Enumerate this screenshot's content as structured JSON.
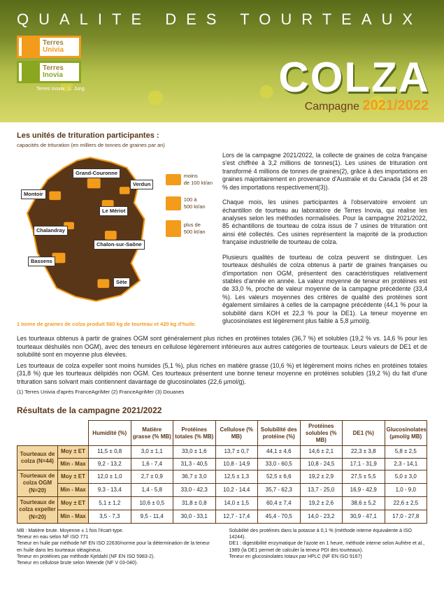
{
  "header": {
    "title": "QUALITE DES TOURTEAUX",
    "logo1_top": "Terres",
    "logo1_bot": "Univia",
    "logo2_top": "Terres",
    "logo2_bot": "Inovia",
    "photo_credit": "Terres Inovia : L. Jung",
    "product": "COLZA",
    "campagne_label": "Campagne",
    "campagne_year": "2021/2022",
    "brown": "#5a3618",
    "orange": "#f39b1a"
  },
  "section1": {
    "subtitle": "Les unités de trituration participantes :",
    "caption": "capacités de trituration (en milliers de tonnes de graines par an)",
    "map_foot": "1 tonne de graines de colza produit 560 kg de tourteau et 420 kg d'huile.",
    "cities": {
      "montoir": "Montoir",
      "grand_couronne": "Grand-Couronne",
      "verdun": "Verdun",
      "le_meriot": "Le Mériot",
      "chalandray": "Chalandray",
      "chalon": "Chalon-sur-Saône",
      "bassens": "Bassens",
      "sete": "Sète"
    },
    "legend": {
      "l1a": "moins",
      "l1b": "de 100 kt/an",
      "l2a": "100 à",
      "l2b": "500 kt/an",
      "l3a": "plus de",
      "l3b": "500 kt/an"
    }
  },
  "para": {
    "p1": "Lors de la campagne 2021/2022, la collecte de graines de colza française s'est chiffrée à 3,2 millions de tonnes(1). Les usines de trituration ont transformé 4 millions de tonnes de graines(2), grâce à des importations en graines majoritairement en provenance d'Australie et du Canada (34 et 28 % des importations respectivement(3)).",
    "p2": "Chaque mois, les usines participantes à l'observatoire envoient un échantillon de tourteau au laboratoire de Terres Inovia, qui réalise les analyses selon les méthodes normalisées. Pour la campagne 2021/2022, 85 échantillons de tourteau de colza issus de 7 usines de trituration ont ainsi été collectés. Ces usines représentent la majorité de la production française industrielle de tourteau de colza.",
    "p3": "Plusieurs qualités de tourteau de colza peuvent se distinguer. Les tourteaux déshuilés de colza obtenus à partir de graines françaises ou d'importation non OGM, présentent des caractéristiques relativement stables d'année en année. La valeur moyenne de teneur en protéines est de 33,0 %, proche de valeur moyenne de la campagne précédente (33,4 %). Les valeurs moyennes des critères de qualité des protéines sont également similaires à celles de la campagne précédente (44,1 % pour la solubilité dans KOH et 22,3 % pour la DE1). La teneur moyenne en glucosinolates est légèrement plus faible à 5,8 µmol/g.",
    "p4": "Les tourteaux obtenus à partir de graines OGM sont généralement plus riches en protéines totales (36,7 %) et solubles (19,2 % vs. 14,6 % pour les tourteaux déshuilés non OGM), avec des teneurs en cellulose légèrement inférieures aux autres catégories de tourteaux. Leurs valeurs de DE1 et de solubilité sont en moyenne plus élevées.",
    "p5": "Les tourteaux de colza expeller sont moins humides (5,1 %), plus riches en matière grasse (10,6 %) et légèrement moins riches en protéines totales (31,8 %) que les tourteaux délipidés non OGM. Ces tourteaux présentent une bonne teneur moyenne en protéines solubles (19,2 %) du fait d'une trituration sans solvant mais contiennent davantage de glucosinolates (22,6 µmol/g).",
    "refs": "(1) Terres Univia d'après FranceAgriMer (2) FranceAgriMer (3) Douanes"
  },
  "results": {
    "title": "Résultats de la campagne 2021/2022",
    "stat_moy": "Moy ± ET",
    "stat_minmax": "Min - Max",
    "cols": [
      "Humidité (%)",
      "Matière grasse (% MB)",
      "Protéines totales (% MB)",
      "Cellulose (% MB)",
      "Solubilité des protéine (%)",
      "Protéines solubles (% MB)",
      "DE1 (%)",
      "Glucosinolates (µmol/g MB)"
    ],
    "groups": [
      {
        "name": "Tourteaux de colza (N=44)",
        "moy": [
          "11,5 ± 0,8",
          "3,0 ± 1,1",
          "33,0 ± 1,6",
          "13,7 ± 0,7",
          "44,1 ± 4,6",
          "14,6 ± 2,1",
          "22,3 ± 3,8",
          "5,8 ± 2,5"
        ],
        "mm": [
          "9,2 - 13,2",
          "1,6 - 7,4",
          "31,3 - 40,5",
          "10,8 - 14,9",
          "33,0 - 60,5",
          "10,8 - 24,5",
          "17,1 - 31,9",
          "2,3 - 14,1"
        ]
      },
      {
        "name": "Tourteaux de colza OGM (N=20)",
        "moy": [
          "12,0 ± 1,0",
          "2,7 ± 0,9",
          "36,7 ± 3,0",
          "12,5 ± 1,3",
          "52,5 ± 6,6",
          "19,2 ± 2,9",
          "27,5 ± 5,5",
          "5,0 ± 3,0"
        ],
        "mm": [
          "9,3 - 13,4",
          "1,4 - 5,8",
          "33,0 - 42,3",
          "10,2 - 14,4",
          "35,7 - 62,3",
          "13,7 - 25,0",
          "16,9 - 42,9",
          "1,0 - 9,0"
        ]
      },
      {
        "name": "Tourteaux de colza expeller (N=20)",
        "moy": [
          "5,1 ± 1,2",
          "10,6 ± 0,5",
          "31,8 ± 0,8",
          "14,0 ± 1,5",
          "60,4 ± 7,4",
          "19,2 ± 2,6",
          "38,6 ± 5,2",
          "22,6 ± 2,5"
        ],
        "mm": [
          "3,5 - 7,3",
          "9,5 - 11,4",
          "30,0 - 33,1",
          "12,7 - 17,4",
          "45,4 - 70,5",
          "14,0 - 23,2",
          "30,9 - 47,1",
          "17,0 - 27,8"
        ]
      }
    ]
  },
  "footnotes": {
    "left": "MB : Matière brute. Moyenne ± 1 fois l'écart-type.\nTeneur en eau selon NF ISO 771\nTeneur en huile par méthode NF EN ISO 22630/norme pour la détermination de la teneur en huile dans les tourteaux oléagineux.\nTeneur en protéines par méthode Kjeldahl (NF EN ISO 5983-2).\nTeneur en cellulose brute selon Weende (NF V 03-040).",
    "right": "Solubilité des protéines dans la potasse à 0,1 % (méthode interne équivalente à ISO 14244).\nDE1 : digestibilité enzymatique de l'azote en 1 heure, méthode interne selon Aufrère et al., 1989 (la DE1 permet de calculer la teneur PDI des tourteaux).\nTeneur en glucosinolates totaux par HPLC (NF EN ISO 9167)"
  }
}
